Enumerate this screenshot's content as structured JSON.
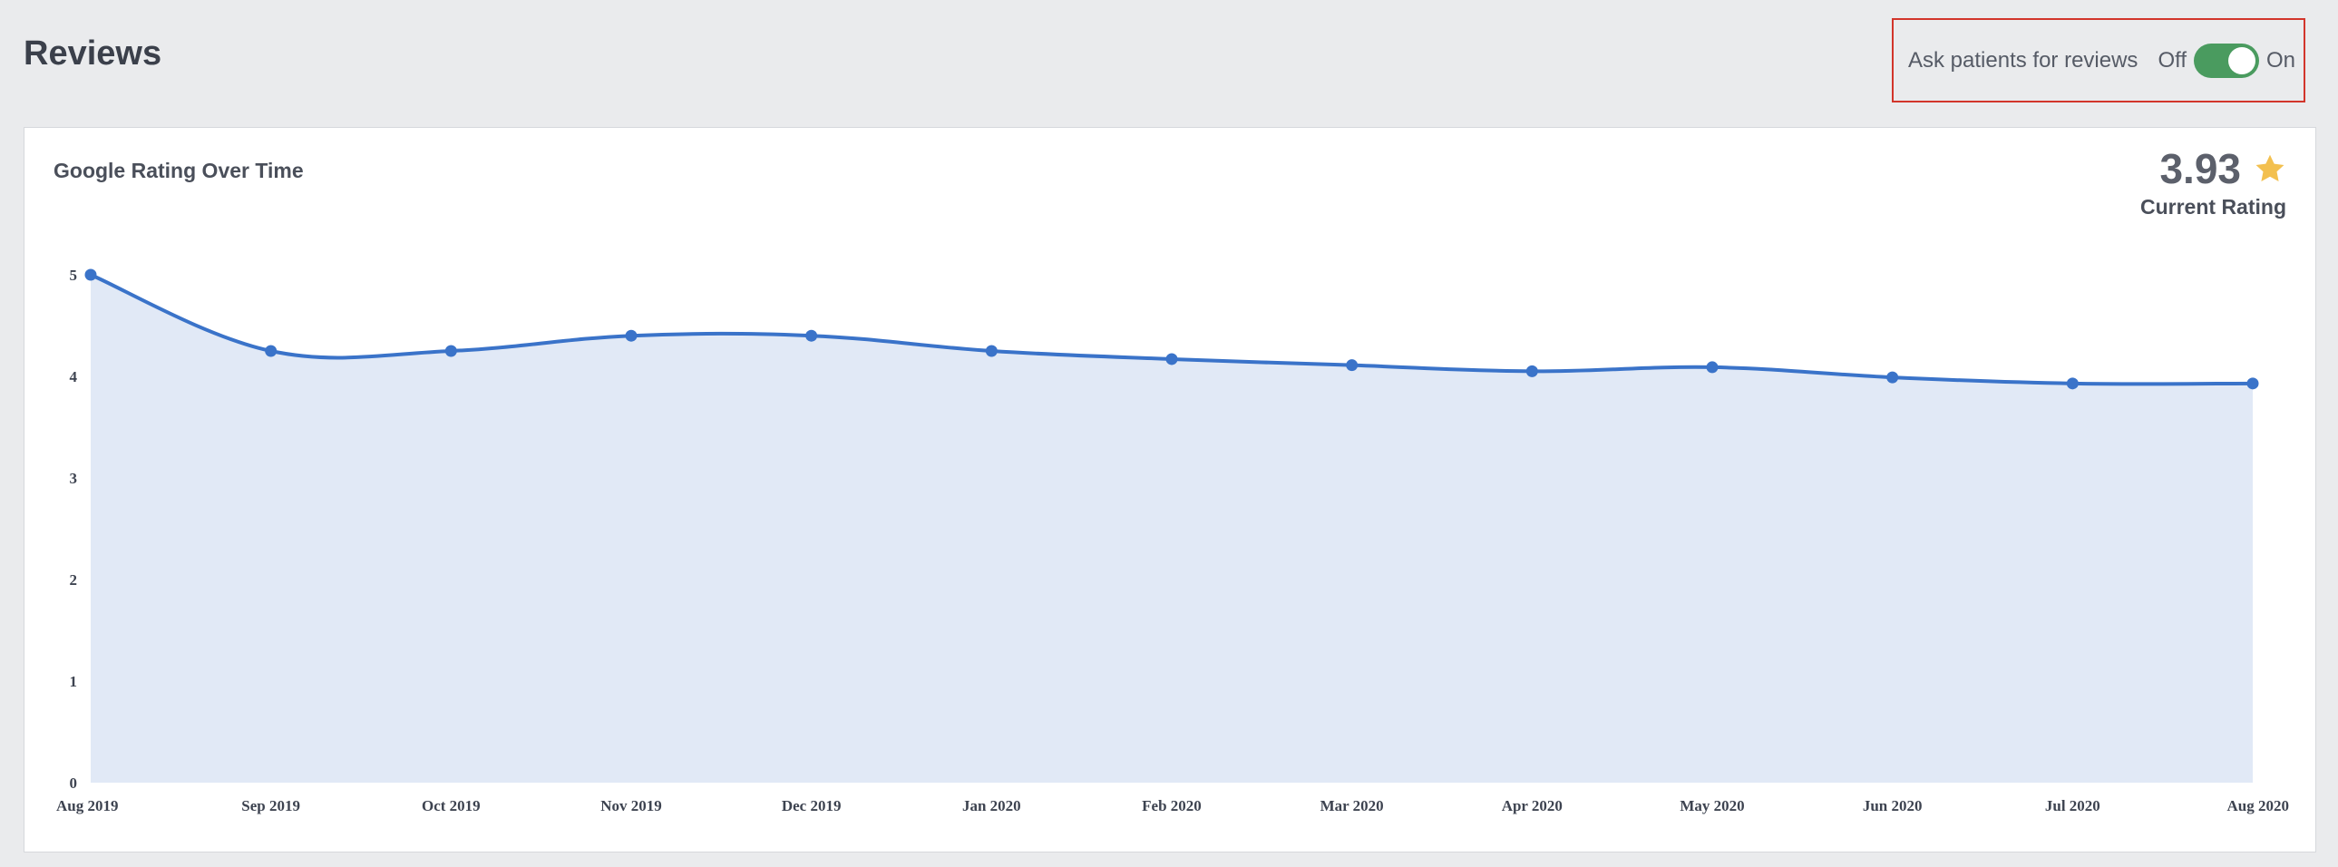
{
  "header": {
    "title": "Reviews"
  },
  "review_toggle": {
    "label": "Ask patients for reviews",
    "off_label": "Off",
    "on_label": "On",
    "state": "on",
    "accent_color": "#4a9b5f"
  },
  "card": {
    "title": "Google Rating Over Time",
    "current_rating": "3.93",
    "current_rating_caption": "Current Rating",
    "star_color": "#f3c04f"
  },
  "chart_data": {
    "type": "area",
    "title": "Google Rating Over Time",
    "categories": [
      "Aug 2019",
      "Sep 2019",
      "Oct 2019",
      "Nov 2019",
      "Dec 2019",
      "Jan 2020",
      "Feb 2020",
      "Mar 2020",
      "Apr 2020",
      "May 2020",
      "Jun 2020",
      "Jul 2020",
      "Aug 2020"
    ],
    "series": [
      {
        "values": [
          5.0,
          4.25,
          4.25,
          4.4,
          4.4,
          4.25,
          4.17,
          4.11,
          4.05,
          4.09,
          3.99,
          3.93,
          3.93
        ],
        "color": "#3a73c9",
        "fill": "#e1e9f6"
      }
    ],
    "yticks": [
      0,
      1,
      2,
      3,
      4,
      5
    ],
    "ylim": [
      0,
      5
    ],
    "xlabel": "",
    "ylabel": "",
    "grid": false,
    "legend": "none"
  }
}
